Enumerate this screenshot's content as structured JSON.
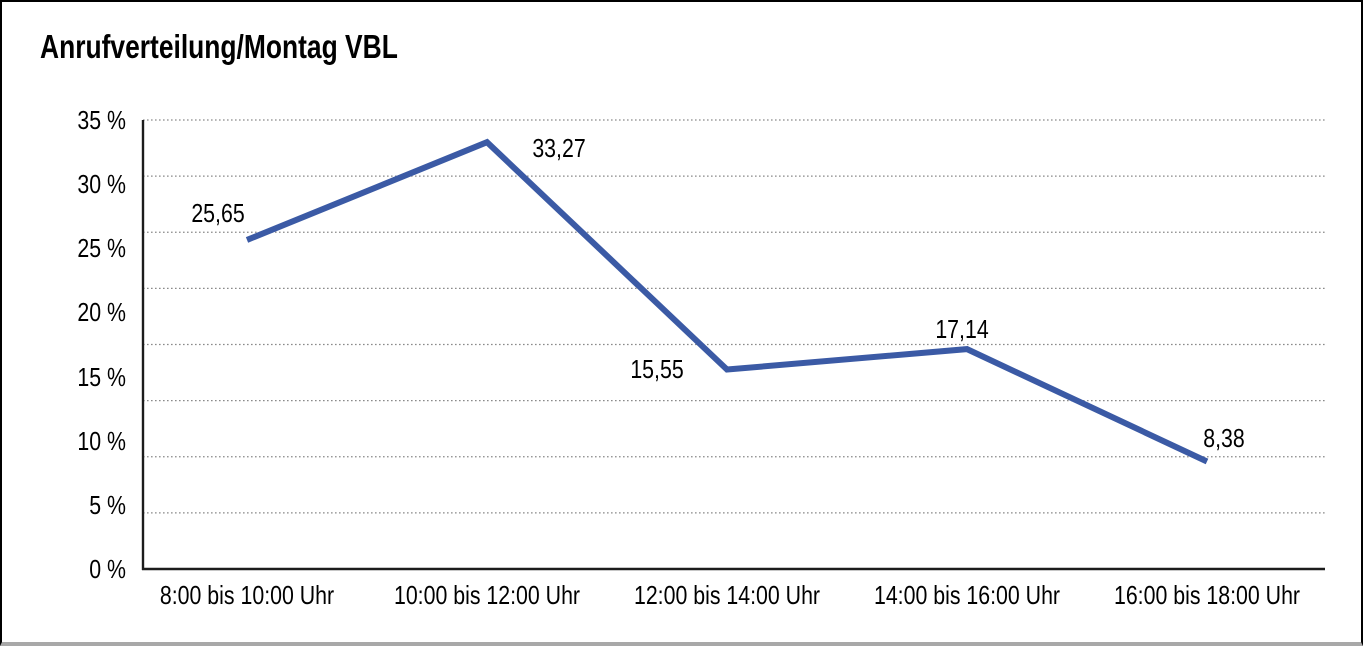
{
  "title": "Anrufverteilung/Montag VBL",
  "colors": {
    "line": "#3B5AA5",
    "axis": "#1c1c1c",
    "gridline": "#8a8a8a",
    "background": "#ffffff",
    "border": "#000000",
    "text": "#000000"
  },
  "chart_data": {
    "type": "line",
    "title": "Anrufverteilung/Montag VBL",
    "categories": [
      "8:00 bis 10:00 Uhr",
      "10:00 bis 12:00 Uhr",
      "12:00 bis 14:00 Uhr",
      "14:00 bis 16:00 Uhr",
      "16:00 bis 18:00 Uhr"
    ],
    "values": [
      25.65,
      33.27,
      15.55,
      17.14,
      8.38
    ],
    "point_labels": [
      "25,65",
      "33,27",
      "15,55",
      "17,14",
      "8,38"
    ],
    "xlabel": "",
    "ylabel": "",
    "ylim": [
      0,
      35
    ],
    "ytick_step": 5,
    "ytick_labels": [
      "0 %",
      "5 %",
      "10 %",
      "15 %",
      "20 %",
      "25 %",
      "30 %",
      "35 %"
    ],
    "grid": "horizontal-dotted",
    "gridline_divisions": 8,
    "legend": "none",
    "decimal_separator": ","
  }
}
